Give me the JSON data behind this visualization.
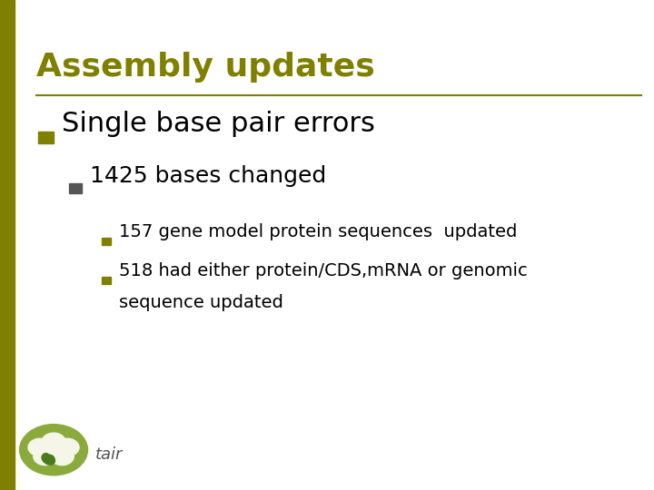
{
  "title": "Assembly updates",
  "title_color": "#808000",
  "title_fontsize": 26,
  "background_color": "#ffffff",
  "left_bar_color": "#808000",
  "divider_color": "#808000",
  "bullet1_text": "Single base pair errors",
  "bullet1_color": "#000000",
  "bullet1_fontsize": 22,
  "bullet1_marker_color": "#808000",
  "sub_bullet_text": "1425 bases changed",
  "sub_bullet_color": "#000000",
  "sub_bullet_fontsize": 18,
  "sub_bullet_marker_color": "#555555",
  "sub_sub_bullet1": "157 gene model protein sequences  updated",
  "sub_sub_bullet2_line1": "518 had either protein/CDS,mRNA or genomic",
  "sub_sub_bullet2_line2": "sequence updated",
  "sub_sub_bullet_color": "#000000",
  "sub_sub_bullet_fontsize": 14,
  "sub_sub_marker_color": "#808000",
  "tair_circle_color": "#8aab3c",
  "tair_text_color": "#555555",
  "tair_text": "tair",
  "figwidth": 7.2,
  "figheight": 5.4,
  "dpi": 100
}
